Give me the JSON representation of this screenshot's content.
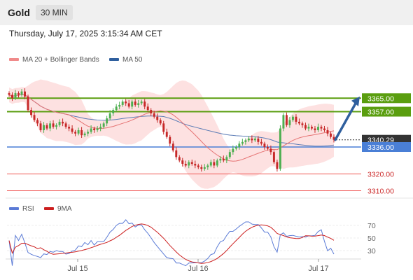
{
  "header": {
    "instrument": "Gold",
    "timeframe": "30 MIN"
  },
  "timestamp": "Thursday, July 17, 2025 3:15:34 AM CET",
  "legend": {
    "ma20": "MA 20 + Bollinger Bands",
    "ma50": "MA 50",
    "rsi": "RSI",
    "rsi_ma": "9MA"
  },
  "colors": {
    "up_candle": "#4caf50",
    "down_candle": "#c62828",
    "bollinger_fill": "#fddcdc",
    "ma20": "#e57373",
    "ma50": "#5b7bb5",
    "resistance": "#5a9e0f",
    "support": "#4a7fd6",
    "lower_levels": "#ef5350",
    "current_price": "#333333",
    "arrow": "#2f5f9e",
    "rsi": "#5b7bd6",
    "rsi_ma": "#cc1f1f"
  },
  "chart_data": {
    "type": "candlestick",
    "x_tick_labels": [
      "Jul 15",
      "Jul 16",
      "Jul 17"
    ],
    "price_levels": [
      {
        "value": 3365.0,
        "label": "3365.00",
        "kind": "resistance"
      },
      {
        "value": 3357.0,
        "label": "3357.00",
        "kind": "resistance"
      },
      {
        "value": 3340.29,
        "label": "3340.29",
        "kind": "current"
      },
      {
        "value": 3336.0,
        "label": "3336.00",
        "kind": "support"
      },
      {
        "value": 3320.0,
        "label": "3320.00",
        "kind": "level"
      },
      {
        "value": 3310.0,
        "label": "3310.00",
        "kind": "level"
      }
    ],
    "closes": [
      3367,
      3365,
      3368,
      3367,
      3369,
      3366,
      3358,
      3355,
      3352,
      3350,
      3346,
      3349,
      3347,
      3350,
      3348,
      3349,
      3351,
      3350,
      3348,
      3347,
      3345,
      3344,
      3346,
      3343,
      3344,
      3345,
      3347,
      3346,
      3347,
      3348,
      3350,
      3353,
      3356,
      3358,
      3360,
      3361,
      3363,
      3362,
      3360,
      3363,
      3361,
      3362,
      3363,
      3360,
      3358,
      3356,
      3354,
      3352,
      3350,
      3345,
      3342,
      3338,
      3334,
      3330,
      3328,
      3326,
      3325,
      3327,
      3326,
      3325,
      3324,
      3323,
      3324,
      3325,
      3327,
      3325,
      3328,
      3329,
      3328,
      3330,
      3333,
      3335,
      3336,
      3338,
      3339,
      3340,
      3341,
      3340,
      3341,
      3339,
      3338,
      3336,
      3335,
      3333,
      3327,
      3323,
      3347,
      3355,
      3349,
      3352,
      3354,
      3351,
      3350,
      3349,
      3347,
      3348,
      3347,
      3346,
      3348,
      3347,
      3346,
      3344,
      3342,
      3340.29
    ],
    "rsi_axis_ticks": [
      70,
      50,
      30
    ]
  }
}
